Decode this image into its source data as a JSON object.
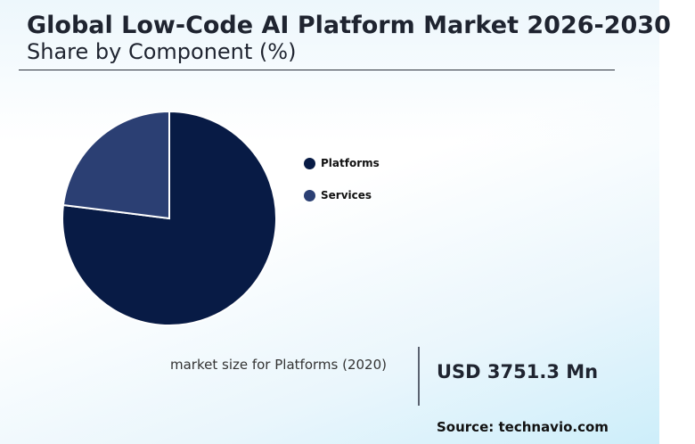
{
  "header": {
    "title": "Global Low-Code AI Platform Market 2026-2030",
    "subtitle": "Share by Component (%)"
  },
  "chart_data": {
    "type": "pie",
    "categories": [
      "Platforms",
      "Services"
    ],
    "values": [
      77,
      23
    ],
    "colors": [
      "#081b45",
      "#2b3f73"
    ],
    "legend_position": "right"
  },
  "legend": {
    "items": [
      {
        "label": "Platforms",
        "color": "#081b45"
      },
      {
        "label": "Services",
        "color": "#2b3f73"
      }
    ]
  },
  "stat": {
    "label": "market size for Platforms (2020)",
    "value": "USD 3751.3 Mn"
  },
  "footer": {
    "source": "Source: technavio.com"
  }
}
